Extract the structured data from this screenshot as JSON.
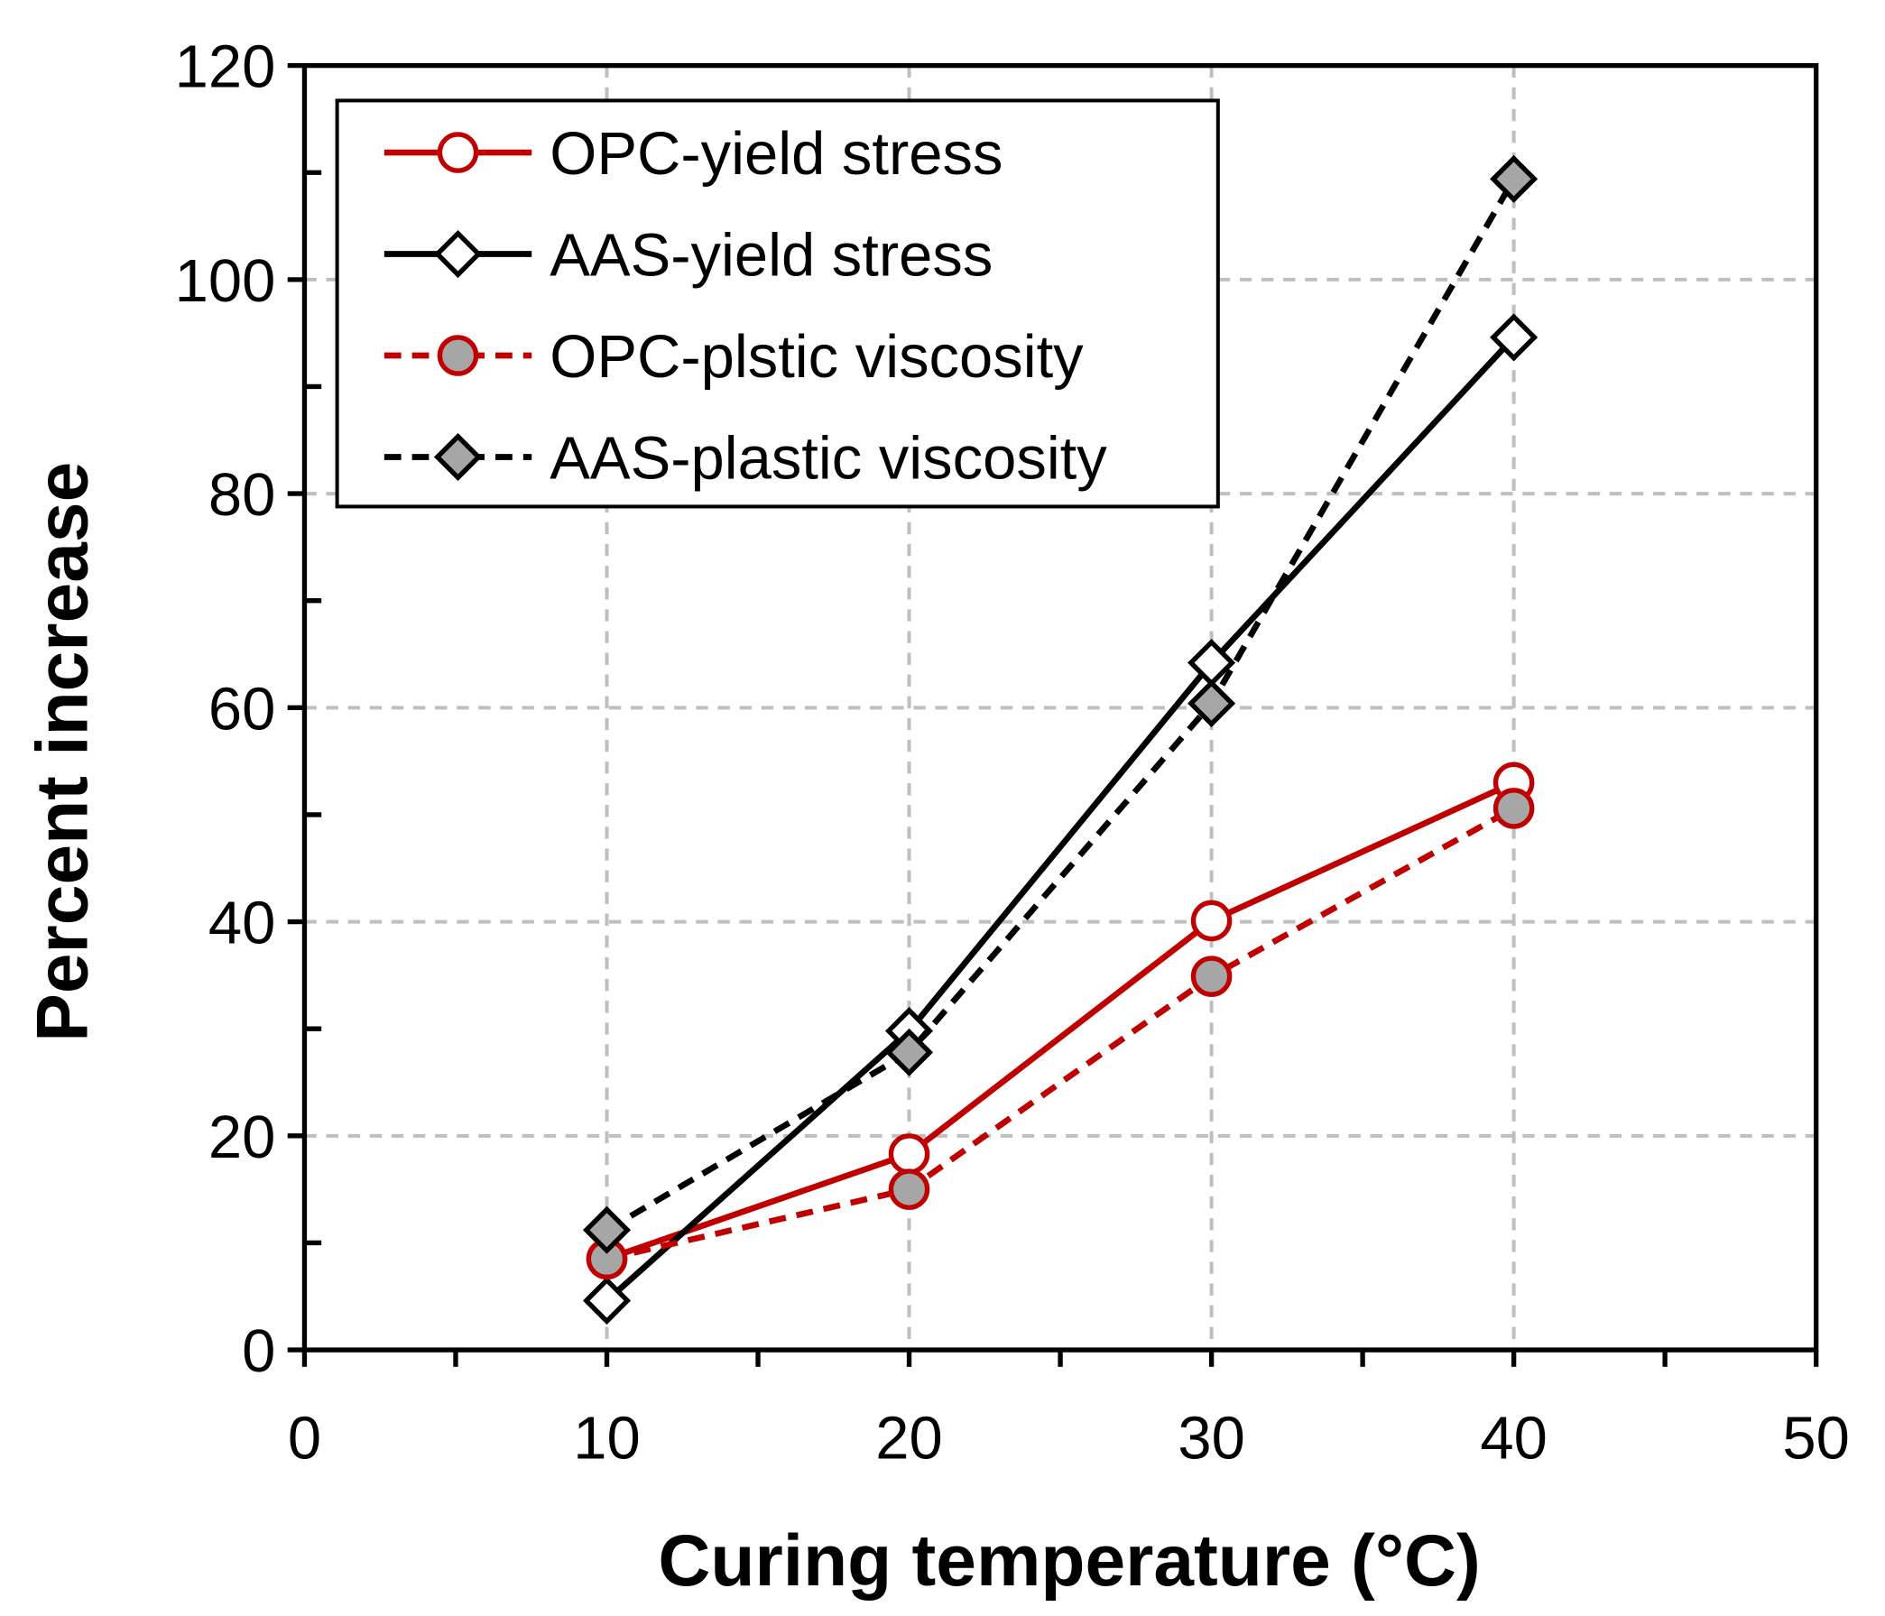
{
  "chart_data": {
    "type": "line",
    "title": "",
    "xlabel": "Curing temperature (°C)",
    "ylabel": "Percent increase",
    "xlim": [
      0,
      50
    ],
    "ylim": [
      0,
      120
    ],
    "xticks": [
      0,
      10,
      20,
      30,
      40,
      50
    ],
    "yticks": [
      0,
      20,
      40,
      60,
      80,
      100,
      120
    ],
    "grid": true,
    "legend_position": "top-left",
    "series": [
      {
        "name": "OPC-yield stress",
        "x": [
          10,
          20,
          30,
          40
        ],
        "y": [
          8.5,
          18.3,
          40.1,
          53.0
        ],
        "color": "#c00000",
        "dash": false,
        "marker": "circle",
        "fill": "#ffffff"
      },
      {
        "name": "AAS-yield stress",
        "x": [
          10,
          20,
          30,
          40
        ],
        "y": [
          4.6,
          29.8,
          64.2,
          94.6
        ],
        "color": "#000000",
        "dash": false,
        "marker": "diamond",
        "fill": "#ffffff"
      },
      {
        "name": "OPC-plstic viscosity",
        "x": [
          10,
          20,
          30,
          40
        ],
        "y": [
          8.5,
          15.0,
          34.9,
          50.6
        ],
        "color": "#c00000",
        "dash": true,
        "marker": "circle",
        "fill": "#a6a6a6"
      },
      {
        "name": "AAS-plastic viscosity",
        "x": [
          10,
          20,
          30,
          40
        ],
        "y": [
          11.2,
          27.8,
          60.4,
          109.4
        ],
        "color": "#000000",
        "dash": true,
        "marker": "diamond",
        "fill": "#a6a6a6"
      }
    ]
  }
}
